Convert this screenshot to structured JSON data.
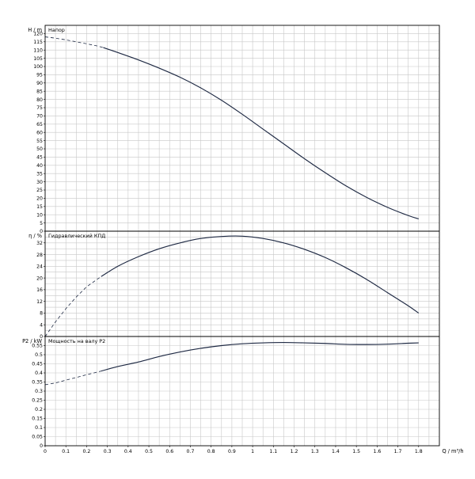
{
  "chart_data": {
    "type": "line",
    "x_axis": {
      "label": "Q / m³/h",
      "range": [
        0,
        1.9
      ],
      "ticks": [
        "0",
        "0.1",
        "0.2",
        "0.3",
        "0.4",
        "0.5",
        "0.6",
        "0.7",
        "0.8",
        "0.9",
        "1",
        "1.1",
        "1.2",
        "1.3",
        "1.4",
        "1.5",
        "1.6",
        "1.7",
        "1.8"
      ],
      "minor_grid_step": 0.05,
      "grid": true
    },
    "panels": [
      {
        "id": "head",
        "title": "Напор",
        "ylabel": "H / m",
        "ylim": [
          0,
          125
        ],
        "yticks": [
          0,
          5,
          10,
          15,
          20,
          25,
          30,
          35,
          40,
          45,
          50,
          55,
          60,
          65,
          70,
          75,
          80,
          85,
          90,
          95,
          100,
          105,
          110,
          115,
          120
        ],
        "grid": true,
        "series": [
          {
            "dashed": {
              "x": [
                0,
                0.05,
                0.1,
                0.15,
                0.2,
                0.25,
                0.28
              ],
              "y": [
                118,
                117.2,
                116.2,
                115,
                113.8,
                112.5,
                111.5
              ]
            },
            "solid": {
              "x": [
                0.28,
                0.35,
                0.45,
                0.55,
                0.65,
                0.75,
                0.85,
                0.95,
                1.05,
                1.15,
                1.25,
                1.35,
                1.45,
                1.55,
                1.65,
                1.75,
                1.8
              ],
              "y": [
                111.5,
                108.5,
                104,
                99,
                93.5,
                87,
                79.5,
                71,
                62,
                53,
                44,
                35.5,
                27.5,
                20.5,
                14.5,
                9.5,
                7.5
              ]
            }
          }
        ]
      },
      {
        "id": "efficiency",
        "title": "Гидравлический КПД",
        "ylabel": "η / %",
        "ylim": [
          0,
          36
        ],
        "yticks": [
          0,
          4,
          8,
          12,
          16,
          20,
          24,
          28,
          32
        ],
        "grid": true,
        "series": [
          {
            "dashed": {
              "x": [
                0,
                0.05,
                0.1,
                0.15,
                0.2,
                0.27
              ],
              "y": [
                0,
                5,
                9.5,
                13.5,
                17,
                20.5
              ]
            },
            "solid": {
              "x": [
                0.27,
                0.35,
                0.45,
                0.55,
                0.65,
                0.75,
                0.85,
                0.95,
                1.05,
                1.15,
                1.25,
                1.35,
                1.45,
                1.55,
                1.65,
                1.75,
                1.8
              ],
              "y": [
                20.5,
                24,
                27.3,
                30,
                32,
                33.5,
                34.2,
                34.3,
                33.5,
                32,
                29.8,
                27,
                23.5,
                19.5,
                15,
                10.5,
                8
              ]
            }
          }
        ]
      },
      {
        "id": "power",
        "title": "Мощность на валу P2",
        "ylabel": "P2 / kW",
        "ylim": [
          0,
          0.6
        ],
        "yticks": [
          0,
          0.05,
          0.1,
          0.15,
          0.2,
          0.25,
          0.3,
          0.35,
          0.4,
          0.45,
          0.5,
          0.55
        ],
        "ytick_labels": [
          "0",
          "0.05",
          "0.1",
          "0.15",
          "0.2",
          "0.25",
          "0.3",
          "0.35",
          "0.4",
          "0.45",
          "0.5",
          "0.55"
        ],
        "grid": true,
        "series": [
          {
            "dashed": {
              "x": [
                0,
                0.05,
                0.1,
                0.15,
                0.2,
                0.27
              ],
              "y": [
                0.335,
                0.345,
                0.36,
                0.375,
                0.39,
                0.41
              ]
            },
            "solid": {
              "x": [
                0.27,
                0.35,
                0.45,
                0.55,
                0.65,
                0.75,
                0.85,
                0.95,
                1.05,
                1.15,
                1.25,
                1.35,
                1.45,
                1.55,
                1.65,
                1.75,
                1.8
              ],
              "y": [
                0.41,
                0.435,
                0.46,
                0.49,
                0.515,
                0.535,
                0.55,
                0.56,
                0.565,
                0.567,
                0.565,
                0.562,
                0.557,
                0.556,
                0.558,
                0.563,
                0.565
              ]
            }
          }
        ]
      }
    ]
  }
}
